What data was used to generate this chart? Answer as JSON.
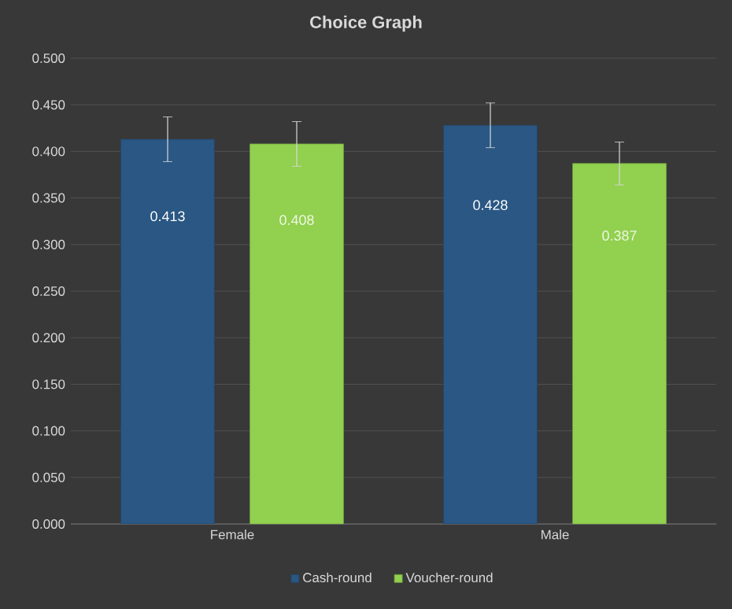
{
  "chart_data": {
    "type": "bar",
    "title": "Choice Graph",
    "categories": [
      "Female",
      "Male"
    ],
    "series": [
      {
        "name": "Cash-round",
        "color": "#2a5783",
        "values": [
          0.413,
          0.428
        ],
        "errors": [
          0.024,
          0.024
        ]
      },
      {
        "name": "Voucher-round",
        "color": "#92d050",
        "values": [
          0.408,
          0.387
        ],
        "errors": [
          0.024,
          0.023
        ]
      }
    ],
    "ylim": [
      0,
      0.5
    ],
    "yticks": [
      {
        "value": 0,
        "label": "0.000"
      },
      {
        "value": 0.05,
        "label": "0.050"
      },
      {
        "value": 0.1,
        "label": "0.100"
      },
      {
        "value": 0.15,
        "label": "0.150"
      },
      {
        "value": 0.2,
        "label": "0.200"
      },
      {
        "value": 0.25,
        "label": "0.250"
      },
      {
        "value": 0.3,
        "label": "0.300"
      },
      {
        "value": 0.35,
        "label": "0.350"
      },
      {
        "value": 0.4,
        "label": "0.400"
      },
      {
        "value": 0.45,
        "label": "0.450"
      },
      {
        "value": 0.5,
        "label": "0.500"
      }
    ],
    "grid": "y",
    "legend": "bottom",
    "data_labels": true
  }
}
